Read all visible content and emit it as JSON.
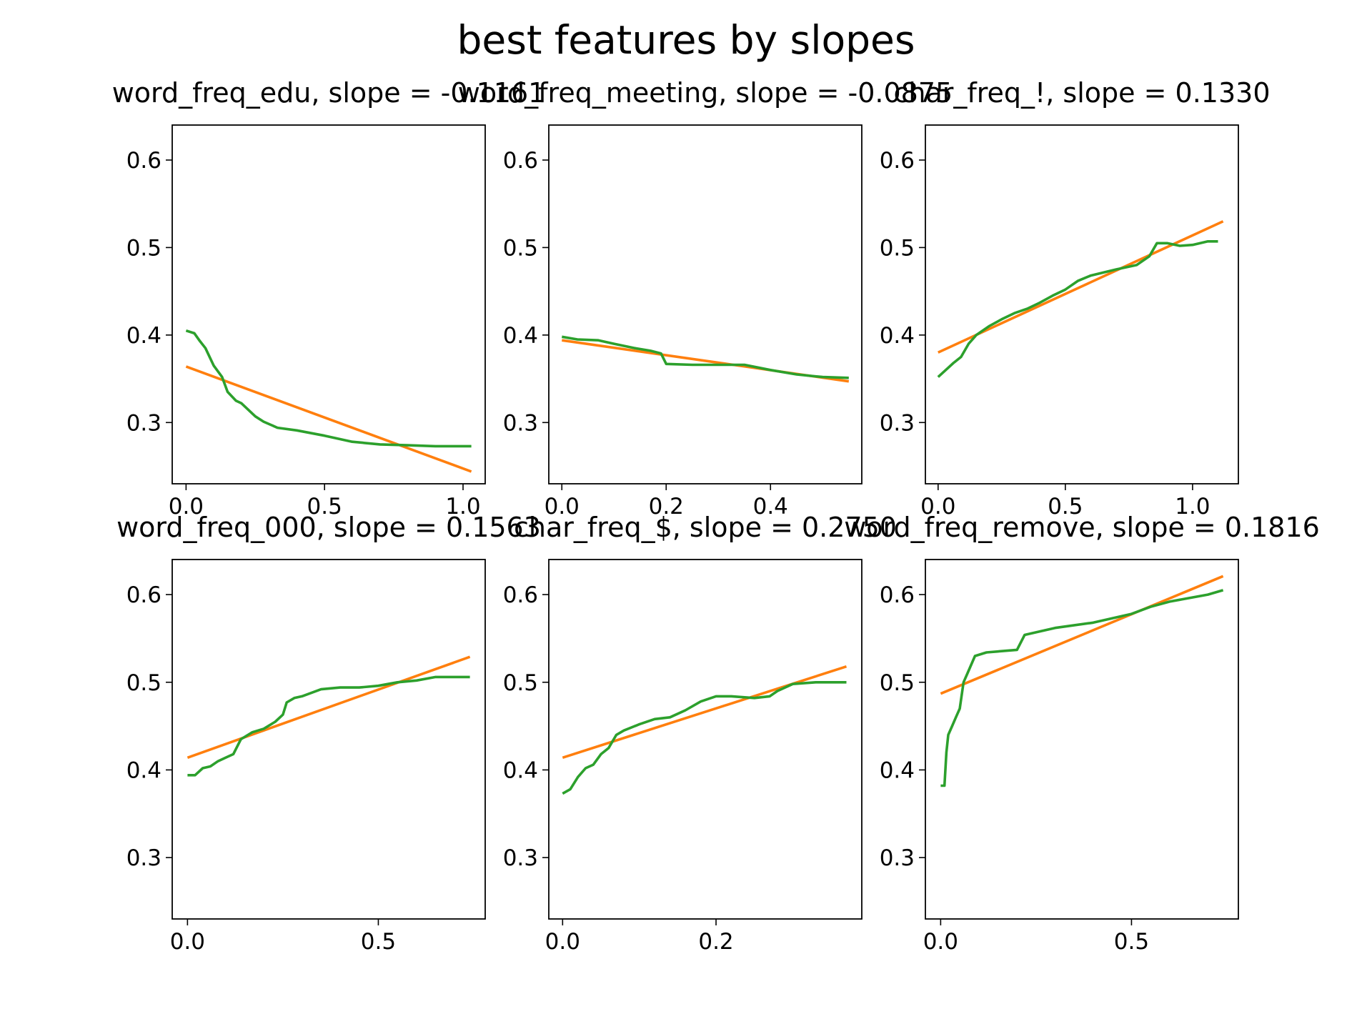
{
  "figure": {
    "title": "best features by slopes"
  },
  "colors": {
    "fit": "#ff7f0e",
    "series": "#2ca02c",
    "axes": "#000000",
    "background": "#ffffff"
  },
  "chart_data": [
    {
      "type": "line",
      "title": "word_freq_edu, slope = -0.1161",
      "xlim": [
        -0.05,
        1.08
      ],
      "ylim": [
        0.23,
        0.64
      ],
      "xticks": [
        0.0,
        0.5,
        1.0
      ],
      "xtick_labels": [
        "0.0",
        "0.5",
        "1.0"
      ],
      "yticks": [
        0.3,
        0.4,
        0.5,
        0.6
      ],
      "ytick_labels": [
        "0.3",
        "0.4",
        "0.5",
        "0.6"
      ],
      "fit": {
        "x": [
          0.0,
          1.03
        ],
        "y": [
          0.364,
          0.244
        ]
      },
      "series": {
        "x": [
          0.0,
          0.03,
          0.05,
          0.07,
          0.1,
          0.13,
          0.15,
          0.18,
          0.2,
          0.25,
          0.28,
          0.33,
          0.4,
          0.5,
          0.6,
          0.7,
          0.8,
          0.9,
          1.03
        ],
        "y": [
          0.405,
          0.402,
          0.393,
          0.385,
          0.365,
          0.352,
          0.335,
          0.325,
          0.322,
          0.307,
          0.301,
          0.294,
          0.291,
          0.285,
          0.278,
          0.275,
          0.274,
          0.273,
          0.273
        ]
      }
    },
    {
      "type": "line",
      "title": "word_freq_meeting, slope = -0.0875",
      "xlim": [
        -0.025,
        0.575
      ],
      "ylim": [
        0.23,
        0.64
      ],
      "xticks": [
        0.0,
        0.2,
        0.4
      ],
      "xtick_labels": [
        "0.0",
        "0.2",
        "0.4"
      ],
      "yticks": [
        0.3,
        0.4,
        0.5,
        0.6
      ],
      "ytick_labels": [
        "0.3",
        "0.4",
        "0.5",
        "0.6"
      ],
      "fit": {
        "x": [
          0.0,
          0.55
        ],
        "y": [
          0.394,
          0.347
        ]
      },
      "series": {
        "x": [
          0.0,
          0.03,
          0.07,
          0.1,
          0.14,
          0.17,
          0.19,
          0.2,
          0.25,
          0.3,
          0.35,
          0.4,
          0.45,
          0.5,
          0.55
        ],
        "y": [
          0.398,
          0.395,
          0.394,
          0.39,
          0.385,
          0.382,
          0.379,
          0.367,
          0.366,
          0.366,
          0.366,
          0.36,
          0.355,
          0.352,
          0.351
        ]
      }
    },
    {
      "type": "line",
      "title": "char_freq_!, slope = 0.1330",
      "xlim": [
        -0.05,
        1.18
      ],
      "ylim": [
        0.23,
        0.64
      ],
      "xticks": [
        0.0,
        0.5,
        1.0
      ],
      "xtick_labels": [
        "0.0",
        "0.5",
        "1.0"
      ],
      "yticks": [
        0.3,
        0.4,
        0.5,
        0.6
      ],
      "ytick_labels": [
        "0.3",
        "0.4",
        "0.5",
        "0.6"
      ],
      "fit": {
        "x": [
          0.0,
          1.12
        ],
        "y": [
          0.38,
          0.53
        ]
      },
      "series": {
        "x": [
          0.0,
          0.03,
          0.06,
          0.09,
          0.12,
          0.15,
          0.2,
          0.25,
          0.3,
          0.35,
          0.4,
          0.45,
          0.5,
          0.55,
          0.6,
          0.7,
          0.78,
          0.83,
          0.86,
          0.9,
          0.95,
          1.0,
          1.06,
          1.1
        ],
        "y": [
          0.352,
          0.36,
          0.368,
          0.375,
          0.39,
          0.4,
          0.41,
          0.418,
          0.425,
          0.43,
          0.437,
          0.445,
          0.452,
          0.462,
          0.468,
          0.475,
          0.48,
          0.49,
          0.505,
          0.505,
          0.502,
          0.503,
          0.507,
          0.507
        ]
      }
    },
    {
      "type": "line",
      "title": "word_freq_000, slope = 0.1563",
      "xlim": [
        -0.04,
        0.78
      ],
      "ylim": [
        0.23,
        0.64
      ],
      "xticks": [
        0.0,
        0.5
      ],
      "xtick_labels": [
        "0.0",
        "0.5"
      ],
      "yticks": [
        0.3,
        0.4,
        0.5,
        0.6
      ],
      "ytick_labels": [
        "0.3",
        "0.4",
        "0.5",
        "0.6"
      ],
      "fit": {
        "x": [
          0.0,
          0.74
        ],
        "y": [
          0.414,
          0.529
        ]
      },
      "series": {
        "x": [
          0.0,
          0.02,
          0.04,
          0.06,
          0.08,
          0.1,
          0.12,
          0.14,
          0.17,
          0.2,
          0.23,
          0.25,
          0.26,
          0.28,
          0.3,
          0.35,
          0.4,
          0.45,
          0.5,
          0.55,
          0.6,
          0.65,
          0.7,
          0.74
        ],
        "y": [
          0.394,
          0.394,
          0.402,
          0.404,
          0.41,
          0.414,
          0.418,
          0.435,
          0.443,
          0.447,
          0.455,
          0.463,
          0.477,
          0.482,
          0.484,
          0.492,
          0.494,
          0.494,
          0.496,
          0.5,
          0.502,
          0.506,
          0.506,
          0.506
        ]
      }
    },
    {
      "type": "line",
      "title": "char_freq_$, slope = 0.2750",
      "xlim": [
        -0.018,
        0.39
      ],
      "ylim": [
        0.23,
        0.64
      ],
      "xticks": [
        0.0,
        0.2
      ],
      "xtick_labels": [
        "0.0",
        "0.2"
      ],
      "yticks": [
        0.3,
        0.4,
        0.5,
        0.6
      ],
      "ytick_labels": [
        "0.3",
        "0.4",
        "0.5",
        "0.6"
      ],
      "fit": {
        "x": [
          0.0,
          0.37
        ],
        "y": [
          0.414,
          0.518
        ]
      },
      "series": {
        "x": [
          0.0,
          0.01,
          0.02,
          0.03,
          0.04,
          0.05,
          0.06,
          0.07,
          0.08,
          0.1,
          0.12,
          0.14,
          0.16,
          0.18,
          0.2,
          0.22,
          0.25,
          0.27,
          0.28,
          0.3,
          0.33,
          0.37
        ],
        "y": [
          0.373,
          0.378,
          0.392,
          0.402,
          0.406,
          0.418,
          0.425,
          0.44,
          0.445,
          0.452,
          0.458,
          0.46,
          0.468,
          0.478,
          0.484,
          0.484,
          0.482,
          0.484,
          0.49,
          0.498,
          0.5,
          0.5
        ]
      }
    },
    {
      "type": "line",
      "title": "word_freq_remove, slope = 0.1816",
      "xlim": [
        -0.04,
        0.78
      ],
      "ylim": [
        0.23,
        0.64
      ],
      "xticks": [
        0.0,
        0.5
      ],
      "xtick_labels": [
        "0.0",
        "0.5"
      ],
      "yticks": [
        0.3,
        0.4,
        0.5,
        0.6
      ],
      "ytick_labels": [
        "0.3",
        "0.4",
        "0.5",
        "0.6"
      ],
      "fit": {
        "x": [
          0.0,
          0.74
        ],
        "y": [
          0.487,
          0.621
        ]
      },
      "series": {
        "x": [
          0.0,
          0.01,
          0.015,
          0.02,
          0.03,
          0.04,
          0.05,
          0.06,
          0.07,
          0.09,
          0.12,
          0.2,
          0.22,
          0.26,
          0.3,
          0.4,
          0.5,
          0.55,
          0.6,
          0.65,
          0.7,
          0.74
        ],
        "y": [
          0.382,
          0.382,
          0.42,
          0.44,
          0.45,
          0.46,
          0.47,
          0.5,
          0.51,
          0.53,
          0.534,
          0.537,
          0.554,
          0.558,
          0.562,
          0.568,
          0.578,
          0.586,
          0.592,
          0.596,
          0.6,
          0.605
        ]
      }
    }
  ]
}
